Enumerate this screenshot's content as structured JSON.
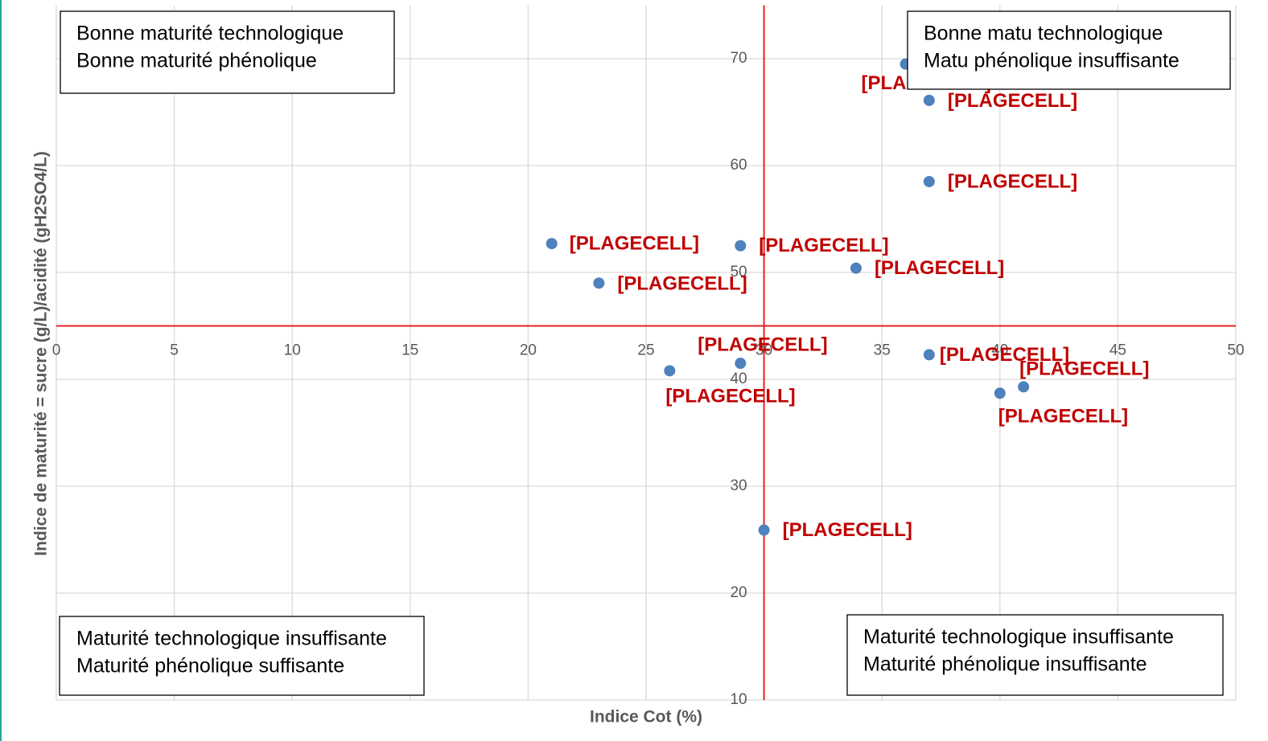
{
  "chart_data": {
    "type": "scatter",
    "x_label": "Indice Cot (%)",
    "y_label": "Indice de maturité = sucre (g/L)/acidité (gH2SO4/L)",
    "x": [
      36,
      37,
      37,
      21,
      29,
      23,
      33.9,
      37,
      26,
      29,
      40,
      41,
      30
    ],
    "values": [
      69.5,
      66.1,
      58.5,
      52.7,
      52.5,
      49.0,
      50.4,
      42.3,
      40.8,
      41.5,
      38.7,
      39.3,
      25.9
    ],
    "point_labels": [
      "[PLAGECELL]",
      "[PLAGECELL]",
      "[PLAGECELL]",
      "[PLAGECELL]",
      "[PLAGECELL]",
      "[PLAGECELL]",
      "[PLAGECELL]",
      "[PLAGECELL]",
      "[PLAGECELL]",
      "[PLAGECELL]",
      "[PLAGECELL]",
      "[PLAGECELL]",
      "[PLAGECELL]"
    ],
    "color": "#4f81bd",
    "label_color": "#c00000",
    "axis_color": "#e02424",
    "xlim": [
      0,
      50
    ],
    "xticks": [
      0,
      5,
      10,
      15,
      20,
      25,
      30,
      35,
      40,
      45,
      50
    ],
    "ylim": [
      10,
      75
    ],
    "yticks": [
      10,
      20,
      30,
      40,
      50,
      60,
      70
    ],
    "x_axis_crosses_at": 45,
    "y_axis_crosses_at": 30,
    "grid": true,
    "annotations": [
      {
        "lines": [
          "Bonne maturité technologique",
          "Bonne maturité phénolique"
        ]
      },
      {
        "lines": [
          "Bonne matu technologique",
          "Matu phénolique insuffisante"
        ]
      },
      {
        "lines": [
          "Maturité technologique insuffisante",
          "Maturité phénolique suffisante"
        ]
      },
      {
        "lines": [
          "Maturité technologique insuffisante",
          "Maturité phénolique insuffisante"
        ]
      }
    ]
  }
}
